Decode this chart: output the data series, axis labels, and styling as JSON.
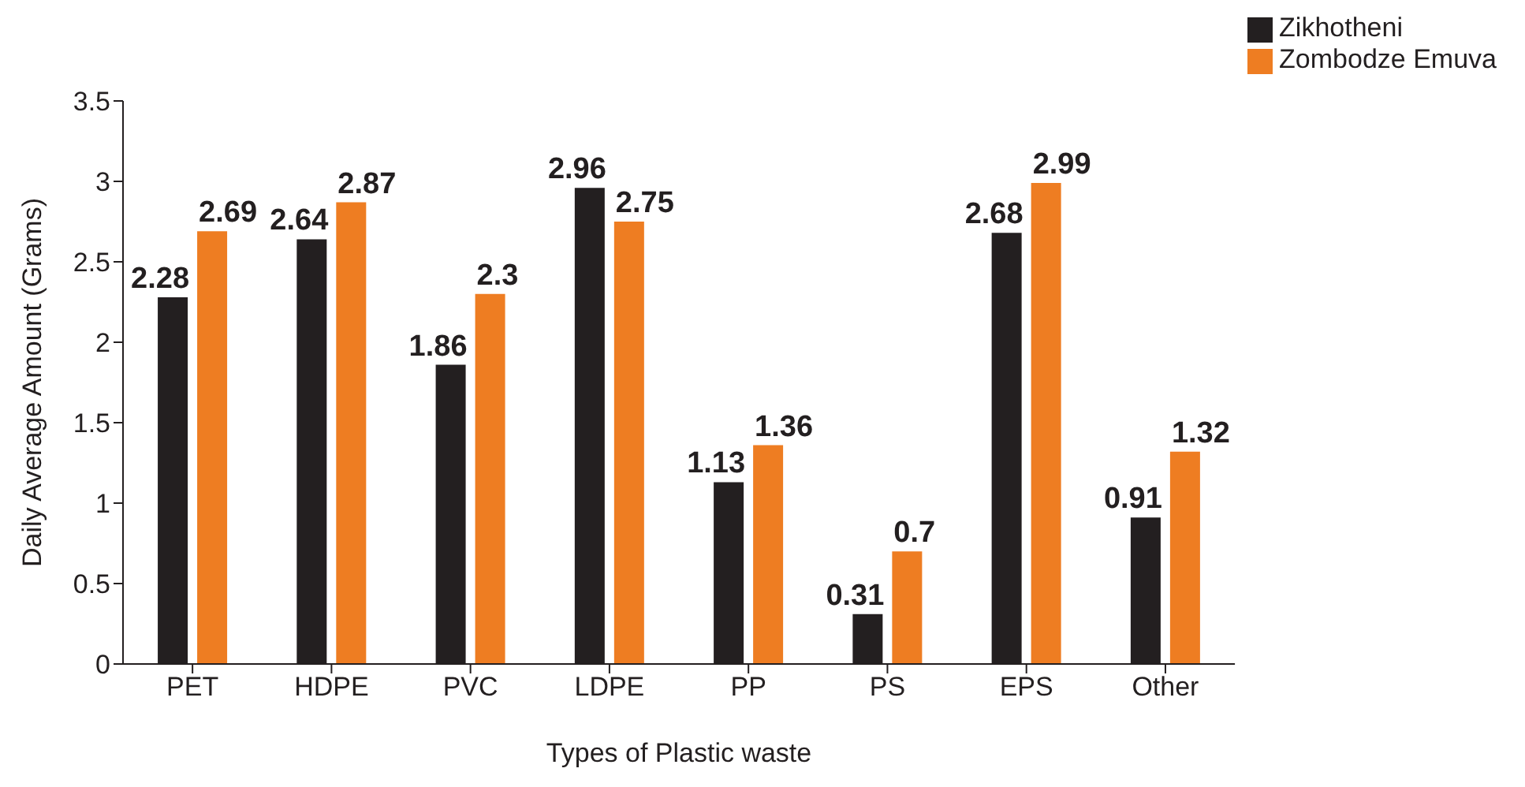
{
  "chart_data": {
    "type": "bar",
    "xlabel": "Types of Plastic waste",
    "ylabel": "Daily Average Amount (Grams)",
    "categories": [
      "PET",
      "HDPE",
      "PVC",
      "LDPE",
      "PP",
      "PS",
      "EPS",
      "Other"
    ],
    "series": [
      {
        "name": "Zikhotheni",
        "color": "#231f20",
        "values": [
          2.28,
          2.64,
          1.86,
          2.96,
          1.13,
          0.31,
          2.68,
          0.91
        ]
      },
      {
        "name": "Zombodze Emuva",
        "color": "#ee7d22",
        "values": [
          2.69,
          2.87,
          2.3,
          2.75,
          1.36,
          0.7,
          2.99,
          1.32
        ]
      }
    ],
    "ylim": [
      0,
      3.5
    ],
    "yticks": [
      0,
      0.5,
      1,
      1.5,
      2,
      2.5,
      3,
      3.5
    ],
    "grid": false,
    "legend": "top right",
    "data_labels": true
  }
}
